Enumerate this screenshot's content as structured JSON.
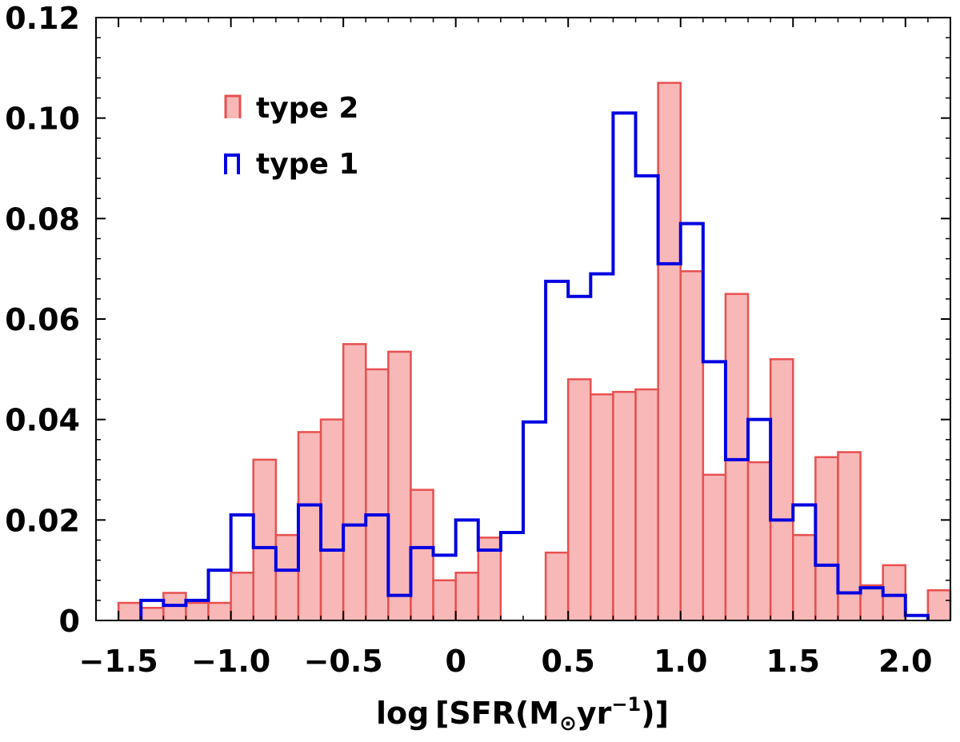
{
  "chart_data": {
    "type": "histogram",
    "title": "",
    "xlabel": {
      "prefix": "log [SFR(M",
      "sun": "⊙",
      "unit": "yr",
      "exp": "−1",
      "suffix": ")]"
    },
    "ylabel": "",
    "xlim": [
      -1.6,
      2.2
    ],
    "ylim": [
      0,
      0.12
    ],
    "bin_width": 0.1,
    "x_ticks": [
      -1.5,
      -1.0,
      -0.5,
      0,
      0.5,
      1.0,
      1.5,
      2.0
    ],
    "x_tick_labels": [
      "−1.5",
      "−1.0",
      "−0.5",
      "0",
      "0.5",
      "1.0",
      "1.5",
      "2.0"
    ],
    "y_ticks": [
      0,
      0.02,
      0.04,
      0.06,
      0.08,
      0.1,
      0.12
    ],
    "y_tick_labels": [
      "0",
      "0.02",
      "0.04",
      "0.06",
      "0.08",
      "0.10",
      "0.12"
    ],
    "series": [
      {
        "name": "type 2",
        "style": "filled",
        "fill_color": "#f8b8b8",
        "edge_color": "#e85050",
        "bins": [
          [
            -1.5,
            0.0035
          ],
          [
            -1.4,
            0.0025
          ],
          [
            -1.3,
            0.0055
          ],
          [
            -1.2,
            0.0035
          ],
          [
            -1.1,
            0.0035
          ],
          [
            -1.0,
            0.0095
          ],
          [
            -0.9,
            0.032
          ],
          [
            -0.8,
            0.017
          ],
          [
            -0.7,
            0.0375
          ],
          [
            -0.6,
            0.04
          ],
          [
            -0.5,
            0.055
          ],
          [
            -0.4,
            0.05
          ],
          [
            -0.3,
            0.0535
          ],
          [
            -0.2,
            0.026
          ],
          [
            -0.1,
            0.008
          ],
          [
            0.0,
            0.0095
          ],
          [
            0.1,
            0.0165
          ],
          [
            0.2,
            0.0
          ],
          [
            0.3,
            0.0
          ],
          [
            0.4,
            0.0135
          ],
          [
            0.5,
            0.048
          ],
          [
            0.6,
            0.045
          ],
          [
            0.7,
            0.0455
          ],
          [
            0.8,
            0.046
          ],
          [
            0.9,
            0.107
          ],
          [
            1.0,
            0.0695
          ],
          [
            1.1,
            0.029
          ],
          [
            1.2,
            0.065
          ],
          [
            1.3,
            0.0315
          ],
          [
            1.4,
            0.052
          ],
          [
            1.5,
            0.017
          ],
          [
            1.6,
            0.0325
          ],
          [
            1.7,
            0.0335
          ],
          [
            1.8,
            0.007
          ],
          [
            1.9,
            0.011
          ],
          [
            2.0,
            0.0
          ],
          [
            2.1,
            0.006
          ]
        ]
      },
      {
        "name": "type 1",
        "style": "step",
        "edge_color": "#0000e0",
        "bins": [
          [
            -1.4,
            0.004
          ],
          [
            -1.3,
            0.003
          ],
          [
            -1.2,
            0.004
          ],
          [
            -1.1,
            0.01
          ],
          [
            -1.0,
            0.021
          ],
          [
            -0.9,
            0.0145
          ],
          [
            -0.8,
            0.01
          ],
          [
            -0.7,
            0.023
          ],
          [
            -0.6,
            0.014
          ],
          [
            -0.5,
            0.019
          ],
          [
            -0.4,
            0.021
          ],
          [
            -0.3,
            0.005
          ],
          [
            -0.2,
            0.0145
          ],
          [
            -0.1,
            0.013
          ],
          [
            0.0,
            0.02
          ],
          [
            0.1,
            0.014
          ],
          [
            0.2,
            0.0175
          ],
          [
            0.3,
            0.0395
          ],
          [
            0.4,
            0.0675
          ],
          [
            0.5,
            0.0645
          ],
          [
            0.6,
            0.069
          ],
          [
            0.7,
            0.101
          ],
          [
            0.8,
            0.0885
          ],
          [
            0.9,
            0.071
          ],
          [
            1.0,
            0.079
          ],
          [
            1.1,
            0.0515
          ],
          [
            1.2,
            0.032
          ],
          [
            1.3,
            0.04
          ],
          [
            1.4,
            0.02
          ],
          [
            1.5,
            0.023
          ],
          [
            1.6,
            0.011
          ],
          [
            1.7,
            0.0055
          ],
          [
            1.8,
            0.0065
          ],
          [
            1.9,
            0.005
          ],
          [
            2.0,
            0.001
          ]
        ]
      }
    ],
    "legend": {
      "placement": "upper-left",
      "entries": [
        "type 2",
        "type 1"
      ]
    }
  }
}
